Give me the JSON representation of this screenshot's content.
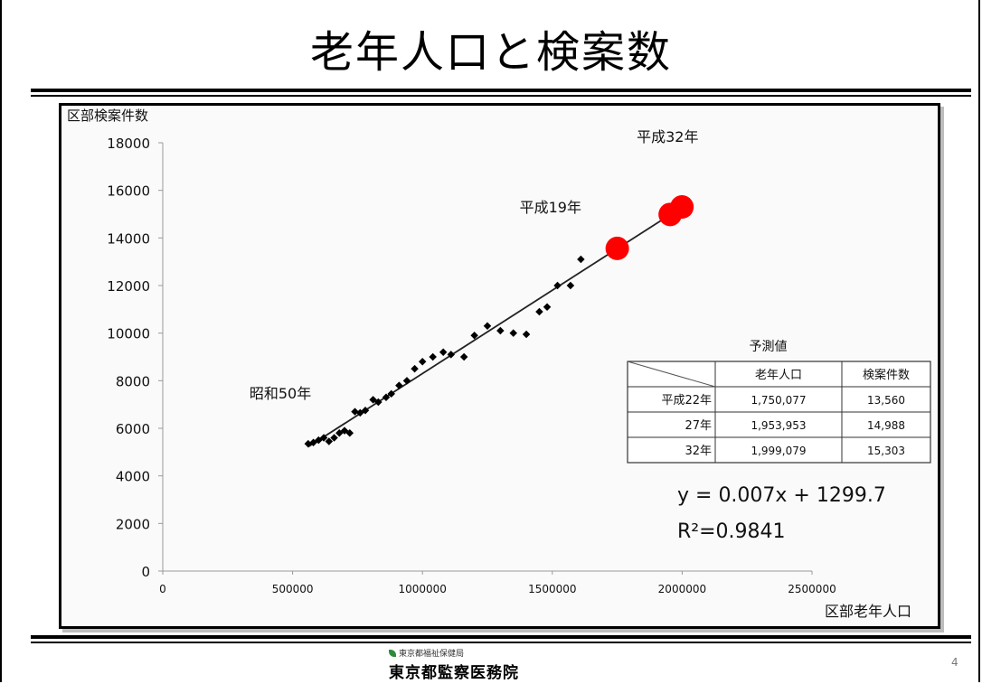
{
  "slide": {
    "title": "老年人口と検案数",
    "page_number": "4",
    "org_sub": "東京都福祉保健局",
    "org_main": "東京都監察医務院"
  },
  "chart_data": {
    "type": "scatter",
    "title": "",
    "xlabel": "区部老年人口",
    "ylabel": "区部検案件数",
    "xlim": [
      0,
      2500000
    ],
    "ylim": [
      0,
      18000
    ],
    "xticks": [
      0,
      500000,
      1000000,
      1500000,
      2000000,
      2500000
    ],
    "xtick_labels": [
      "0",
      "500000",
      "1000000",
      "1500000",
      "2000000",
      "2500000"
    ],
    "yticks": [
      0,
      2000,
      4000,
      6000,
      8000,
      10000,
      12000,
      14000,
      16000,
      18000
    ],
    "ytick_labels": [
      "0",
      "2000",
      "4000",
      "6000",
      "8000",
      "10000",
      "12000",
      "14000",
      "16000",
      "18000"
    ],
    "grid": false,
    "series": [
      {
        "role": "observed",
        "color": "#000000",
        "x": [
          560000,
          580000,
          600000,
          620000,
          640000,
          660000,
          680000,
          700000,
          720000,
          740000,
          760000,
          780000,
          810000,
          830000,
          860000,
          880000,
          910000,
          940000,
          970000,
          1000000,
          1040000,
          1080000,
          1110000,
          1160000,
          1200000,
          1250000,
          1300000,
          1350000,
          1400000,
          1450000,
          1480000,
          1520000,
          1570000,
          1610000
        ],
        "y": [
          5350,
          5400,
          5500,
          5600,
          5450,
          5600,
          5800,
          5900,
          5800,
          6700,
          6650,
          6750,
          7200,
          7100,
          7300,
          7450,
          7800,
          8000,
          8500,
          8800,
          9000,
          9200,
          9100,
          9000,
          9900,
          10300,
          10100,
          10000,
          9950,
          10900,
          11100,
          12000,
          12000,
          13100
        ]
      },
      {
        "role": "predicted",
        "color": "#ff0000",
        "x": [
          1750077,
          1953953,
          1999079
        ],
        "y": [
          13560,
          14988,
          15303
        ]
      }
    ],
    "trendline": {
      "equation": "y = 0.007x + 1299.7",
      "r2": "R²=0.9841",
      "x_start": 560000,
      "x_end": 2000000,
      "slope": 0.007,
      "intercept": 1299.7
    },
    "annotations": [
      {
        "text": "昭和50年",
        "near_x": 560000,
        "near_y": 5350
      },
      {
        "text": "平成19年",
        "near_x": 1750077,
        "near_y": 13560
      },
      {
        "text": "平成32年",
        "near_x": 1999079,
        "near_y": 15303
      }
    ],
    "table": {
      "title": "予測値",
      "columns": [
        "",
        "老年人口",
        "検案件数"
      ],
      "rows": [
        [
          "平成22年",
          "1,750,077",
          "13,560"
        ],
        [
          "27年",
          "1,953,953",
          "14,988"
        ],
        [
          "32年",
          "1,999,079",
          "15,303"
        ]
      ]
    }
  }
}
